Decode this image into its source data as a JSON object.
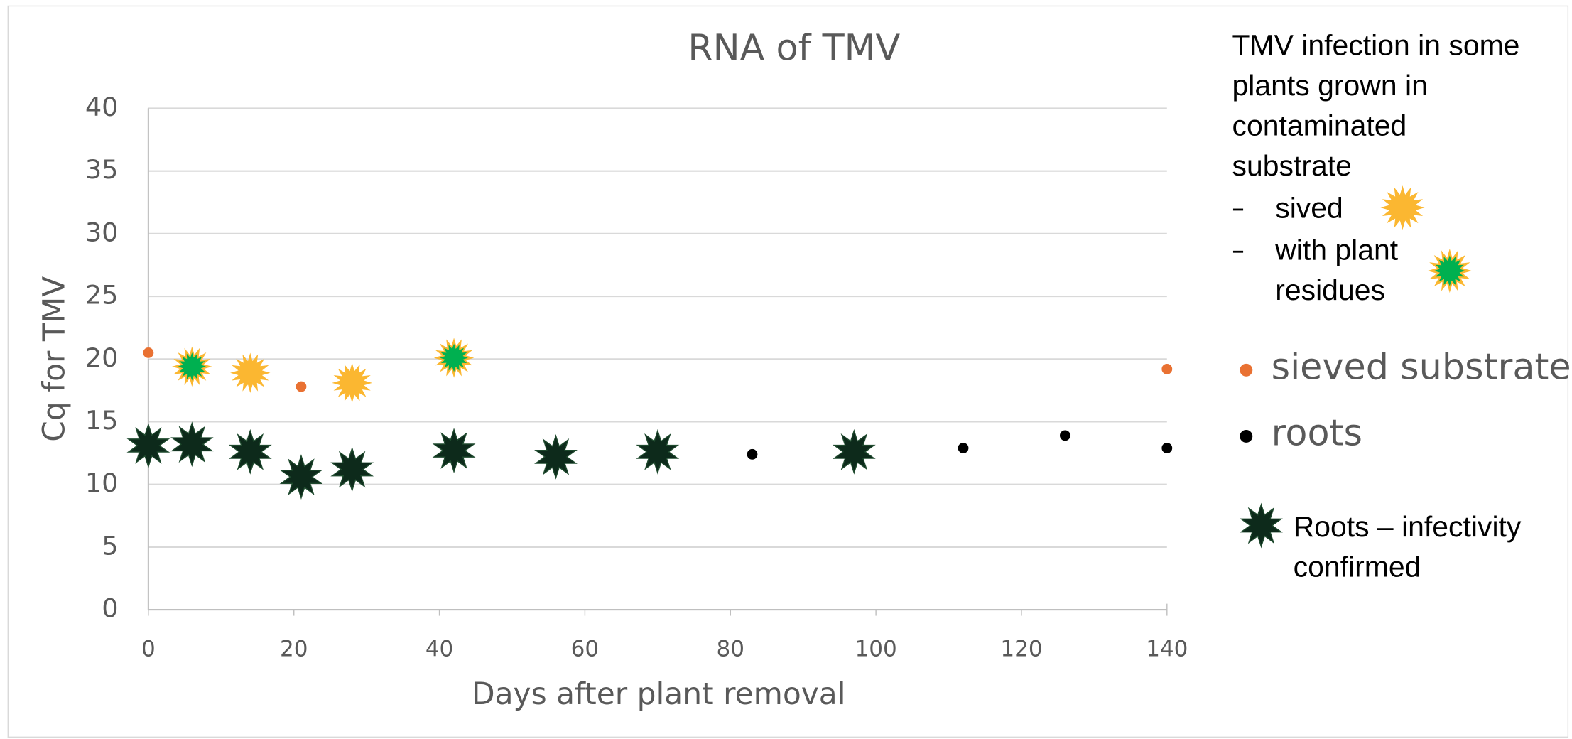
{
  "chart_data": {
    "type": "scatter",
    "title": "RNA of TMV",
    "xlabel": "Days after plant removal",
    "ylabel": "Cq for TMV",
    "annotation": "TMV infection in some plants grown in contaminated substrate",
    "xlim": [
      0,
      140
    ],
    "xticks": [
      0,
      20,
      40,
      60,
      80,
      100,
      120,
      140
    ],
    "ylim": [
      0,
      40
    ],
    "yticks": [
      0,
      5,
      10,
      15,
      20,
      25,
      30,
      35,
      40
    ],
    "grid": true,
    "series": [
      {
        "name": "sieved substrate",
        "color": "#e97132",
        "marker": "dot",
        "x": [
          0,
          21,
          140
        ],
        "values": [
          20.5,
          17.8,
          19.2
        ]
      },
      {
        "name": "roots",
        "color": "#000000",
        "marker": "dot",
        "x": [
          83,
          112,
          126,
          140
        ],
        "values": [
          12.4,
          12.9,
          13.9,
          12.9
        ]
      },
      {
        "name": "sived",
        "color": "#fbb731",
        "marker": "star",
        "x": [
          14,
          28
        ],
        "values": [
          18.9,
          18.1
        ]
      },
      {
        "name": "with plant residues",
        "color": "#00b050",
        "marker": "star",
        "x": [
          6,
          42
        ],
        "values": [
          19.4,
          20.1
        ]
      },
      {
        "name": "Roots – infectivity confirmed",
        "color": "#0d2a1b",
        "marker": "star",
        "x": [
          0,
          6,
          14,
          21,
          28,
          42,
          56,
          70,
          97
        ],
        "values": [
          13.1,
          13.2,
          12.6,
          10.6,
          11.2,
          12.7,
          12.2,
          12.6,
          12.6
        ]
      }
    ]
  }
}
